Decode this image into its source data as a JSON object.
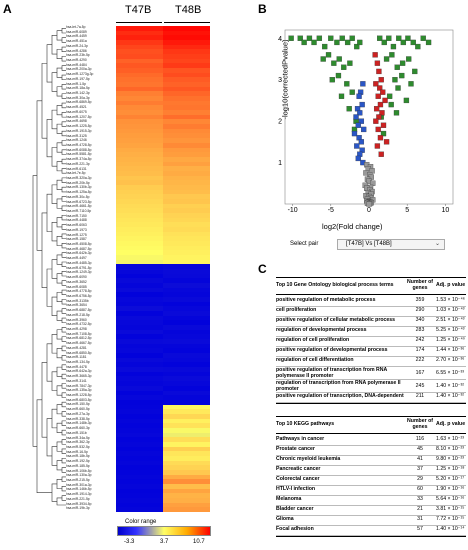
{
  "panels": {
    "a": "A",
    "b": "B",
    "c": "C"
  },
  "heatmap": {
    "columns": [
      "T47B",
      "T48B"
    ],
    "genes": [
      "hsa-let-7a-5p",
      "hsa-miR-6089",
      "hsa-miR-4459",
      "hsa-miR-451a",
      "hsa-miR-24-3p",
      "hsa-miR-4286",
      "hsa-miR-23b-5p",
      "hsa-miR-4290",
      "hsa-miR-4484",
      "hsa-miR-200a-3p",
      "hsa-miR-1273g-3p",
      "hsa-miR-197-5p",
      "hsa-miR-1-5p",
      "hsa-miR-18a-5p",
      "hsa-miR-142-3p",
      "hsa-miR-30a-3p",
      "hsa-miR-6869-5p",
      "hsa-miR-4521",
      "hsa-miR-6075",
      "hsa-miR-1207-5p",
      "hsa-miR-4698",
      "hsa-miR-1225-5p",
      "hsa-miR-1915-3p",
      "hsa-miR-3125",
      "hsa-miR-1246",
      "hsa-miR-4728-5p",
      "hsa-miR-6088-5p",
      "hsa-miR-5581-5p",
      "hsa-miR-374a-5p",
      "hsa-miR-221-3p",
      "hsa-miR-6131",
      "hsa-let-7e-5p",
      "hsa-miR-320a-3p",
      "hsa-miR-20b-5p",
      "hsa-miR-130b-3p",
      "hsa-miR-125a-5p",
      "hsa-miR-30c-5p",
      "hsa-miR-6723-5p",
      "hsa-miR-4661-5p",
      "hsa-miR-7110-5p",
      "hsa-miR-7150",
      "hsa-miR-4488",
      "hsa-miR-6063",
      "hsa-miR-1973",
      "hsa-miR-1275",
      "hsa-miR-1587",
      "hsa-miR-4508-5p",
      "hsa-miR-4687-5p",
      "hsa-miR-642b-3p",
      "hsa-miR-4497",
      "hsa-miR-4485-3p",
      "hsa-miR-6791-5p",
      "hsa-miR-1249-3p",
      "hsa-miR-6090",
      "hsa-miR-3652",
      "hsa-miR-6085",
      "hsa-miR-4778-5p",
      "hsa-miR-6756-5p",
      "hsa-miR-3135b",
      "hsa-miR-3654",
      "hsa-miR-6887-5p",
      "hsa-miR-218-5p",
      "hsa-miR-3960",
      "hsa-miR-4732-5p",
      "hsa-miR-4298",
      "hsa-miR-7108-5p",
      "hsa-miR-6812-5p",
      "hsa-miR-4667-5p",
      "hsa-miR-4281",
      "hsa-miR-6850-5p",
      "hsa-miR-1181",
      "hsa-miR-134-5p",
      "hsa-miR-4478",
      "hsa-miR-642a-3p",
      "hsa-miR-3665-3p",
      "hsa-miR-3141",
      "hsa-miR-7847-3p",
      "hsa-miR-135a-3p",
      "hsa-miR-1228-5p",
      "hsa-miR-6803-5p",
      "hsa-miR-150-5p",
      "hsa-miR-660-5p",
      "hsa-miR-27a-3p",
      "hsa-miR-338-5p",
      "hsa-miR-148b-3p",
      "hsa-miR-660-3p",
      "hsa-miR-151b",
      "hsa-miR-34a-5p",
      "hsa-miR-362-3p",
      "hsa-miR-532-5p",
      "hsa-miR-16-5p",
      "hsa-miR-18b-5p",
      "hsa-miR-192-5p",
      "hsa-miR-185-5p",
      "hsa-miR-106b-5p",
      "hsa-miR-130a-3p",
      "hsa-miR-215-5p",
      "hsa-miR-301a-3p",
      "hsa-miR-146b-5p",
      "hsa-miR-1914-3p",
      "hsa-miR-221-5p",
      "hsa-miR-3934-5p",
      "hsa-miR-19b-3p"
    ],
    "values": [
      [
        10.0,
        10.5
      ],
      [
        9.5,
        10.2
      ],
      [
        9.8,
        10.4
      ],
      [
        9.2,
        10.0
      ],
      [
        8.8,
        9.6
      ],
      [
        8.5,
        9.2
      ],
      [
        8.6,
        9.0
      ],
      [
        8.0,
        8.8
      ],
      [
        8.3,
        9.1
      ],
      [
        8.1,
        8.4
      ],
      [
        7.8,
        8.6
      ],
      [
        7.6,
        8.2
      ],
      [
        7.5,
        8.0
      ],
      [
        7.9,
        8.3
      ],
      [
        7.2,
        7.9
      ],
      [
        7.0,
        7.6
      ],
      [
        7.3,
        7.4
      ],
      [
        6.9,
        7.5
      ],
      [
        6.8,
        7.2
      ],
      [
        7.1,
        7.7
      ],
      [
        6.7,
        7.0
      ],
      [
        6.6,
        7.3
      ],
      [
        6.5,
        6.9
      ],
      [
        6.4,
        6.8
      ],
      [
        6.3,
        6.6
      ],
      [
        6.2,
        6.9
      ],
      [
        6.0,
        6.5
      ],
      [
        5.9,
        6.4
      ],
      [
        5.8,
        6.1
      ],
      [
        5.7,
        6.3
      ],
      [
        5.6,
        5.9
      ],
      [
        5.5,
        6.0
      ],
      [
        5.3,
        5.8
      ],
      [
        5.4,
        5.7
      ],
      [
        5.1,
        5.6
      ],
      [
        5.0,
        5.5
      ],
      [
        4.9,
        5.2
      ],
      [
        4.8,
        5.3
      ],
      [
        4.7,
        5.0
      ],
      [
        4.6,
        5.1
      ],
      [
        4.5,
        4.9
      ],
      [
        4.4,
        4.8
      ],
      [
        4.3,
        4.6
      ],
      [
        4.2,
        4.7
      ],
      [
        4.1,
        4.5
      ],
      [
        4.0,
        4.4
      ],
      [
        3.9,
        4.3
      ],
      [
        3.8,
        4.2
      ],
      [
        3.7,
        4.1
      ],
      [
        3.6,
        4.0
      ],
      [
        3.5,
        3.9
      ],
      [
        -3.0,
        -2.9
      ],
      [
        -2.9,
        -2.7
      ],
      [
        -3.1,
        -2.8
      ],
      [
        -2.8,
        -3.0
      ],
      [
        -3.0,
        -2.6
      ],
      [
        -2.7,
        -2.9
      ],
      [
        -3.2,
        -3.0
      ],
      [
        -2.9,
        -2.8
      ],
      [
        -3.0,
        -3.1
      ],
      [
        -2.6,
        -2.9
      ],
      [
        -3.1,
        -2.7
      ],
      [
        -2.8,
        -3.0
      ],
      [
        -2.9,
        -3.2
      ],
      [
        -3.0,
        -2.8
      ],
      [
        -2.7,
        -3.0
      ],
      [
        -3.1,
        -2.9
      ],
      [
        -2.8,
        -2.7
      ],
      [
        -3.0,
        -3.0
      ],
      [
        -2.9,
        -3.1
      ],
      [
        -3.2,
        -2.8
      ],
      [
        -2.8,
        -2.9
      ],
      [
        -3.0,
        -3.1
      ],
      [
        -2.7,
        -2.8
      ],
      [
        -3.1,
        -3.0
      ],
      [
        -2.9,
        -2.7
      ],
      [
        -3.0,
        -2.9
      ],
      [
        -2.8,
        -3.1
      ],
      [
        -3.1,
        -2.8
      ],
      [
        -2.9,
        -3.0
      ],
      [
        -3.2,
        -3.1
      ],
      [
        -3.1,
        3.9
      ],
      [
        -3.0,
        4.3
      ],
      [
        -3.2,
        4.8
      ],
      [
        -3.0,
        4.1
      ],
      [
        -3.1,
        4.5
      ],
      [
        -3.0,
        3.6
      ],
      [
        -2.9,
        3.4
      ],
      [
        -3.1,
        4.6
      ],
      [
        -3.0,
        4.0
      ],
      [
        -3.2,
        5.0
      ],
      [
        -3.0,
        4.4
      ],
      [
        -3.1,
        4.2
      ],
      [
        -3.0,
        4.7
      ],
      [
        -3.2,
        4.9
      ],
      [
        -3.1,
        5.2
      ],
      [
        -3.0,
        6.0
      ],
      [
        -3.1,
        6.8
      ],
      [
        -3.0,
        5.5
      ],
      [
        -3.2,
        6.2
      ],
      [
        -3.1,
        5.8
      ],
      [
        -3.0,
        5.9
      ],
      [
        -3.1,
        6.3
      ],
      [
        -3.0,
        6.5
      ]
    ],
    "color_range": {
      "label": "Color range",
      "min": "-3.3",
      "mid": "3.7",
      "max": "10.7"
    }
  },
  "volcano": {
    "ylabel": "-log10(correctedPvalue)",
    "xlabel": "log2(Fold change)",
    "xticks": [
      "-10",
      "-5",
      "0",
      "5",
      "10"
    ],
    "yticks": [
      "1",
      "2",
      "3",
      "4"
    ],
    "select_label": "Select pair",
    "select_value": "[T47B] Vs [T48B]"
  },
  "chart_data": {
    "type": "scatter",
    "xlabel": "log2(Fold change)",
    "ylabel": "-log10(correctedPvalue)",
    "xlim": [
      -11,
      11
    ],
    "ylim": [
      0,
      4.2
    ],
    "series": [
      {
        "color": "#2e8b2e",
        "x": [
          -10.2,
          -9.0,
          -8.5,
          -7.8,
          -7.2,
          -6.5,
          -5.8,
          -5.0,
          -4.2,
          -3.5,
          -2.8,
          -2.2,
          -1.6,
          -1.2,
          1.4,
          2.0,
          2.6,
          3.2,
          3.9,
          4.5,
          5.1,
          5.8,
          6.4,
          7.1,
          7.8,
          -6.0,
          -5.3,
          -4.6,
          -3.9,
          -3.3,
          -2.5,
          2.3,
          3.0,
          3.7,
          4.4,
          5.2,
          6.0,
          -4.8,
          -4.0,
          -2.9,
          3.4,
          4.3,
          5.5,
          -3.6,
          -2.2,
          2.7,
          3.8,
          4.9,
          -2.6,
          2.9,
          3.6,
          -1.7,
          1.6,
          -1.9,
          1.9
        ],
        "y": [
          4.0,
          4.0,
          3.9,
          4.0,
          3.9,
          4.0,
          3.8,
          4.0,
          3.9,
          4.0,
          3.9,
          4.0,
          3.8,
          3.9,
          4.0,
          3.9,
          4.0,
          3.8,
          4.0,
          3.9,
          4.0,
          3.9,
          3.8,
          4.0,
          3.9,
          3.5,
          3.6,
          3.4,
          3.5,
          3.3,
          3.4,
          3.5,
          3.6,
          3.3,
          3.4,
          3.5,
          3.2,
          3.0,
          3.1,
          2.9,
          3.0,
          3.1,
          2.9,
          2.6,
          2.7,
          2.6,
          2.8,
          2.5,
          2.3,
          2.4,
          2.2,
          2.0,
          2.1,
          1.8,
          1.7
        ]
      },
      {
        "color": "#cc2222",
        "x": [
          0.8,
          1.1,
          1.3,
          1.6,
          0.9,
          1.4,
          1.8,
          1.2,
          2.1,
          1.5,
          1.0,
          1.7,
          1.3,
          0.9,
          1.9,
          1.2,
          1.5,
          2.3,
          1.1,
          1.6
        ],
        "y": [
          3.6,
          3.4,
          3.2,
          3.0,
          2.9,
          2.8,
          2.7,
          2.6,
          2.5,
          2.4,
          2.3,
          2.2,
          2.1,
          2.0,
          1.9,
          1.8,
          1.6,
          1.5,
          1.4,
          1.2
        ]
      },
      {
        "color": "#2a56c6",
        "x": [
          -0.8,
          -1.1,
          -1.3,
          -0.9,
          -1.5,
          -1.2,
          -1.7,
          -1.0,
          -1.4,
          -0.7,
          -1.9,
          -1.3,
          -1.0,
          -1.6,
          -0.9,
          -1.2,
          -1.4,
          -0.8
        ],
        "y": [
          2.9,
          2.7,
          2.6,
          2.4,
          2.3,
          2.2,
          2.1,
          2.0,
          1.9,
          1.8,
          1.7,
          1.6,
          1.5,
          1.4,
          1.3,
          1.2,
          1.1,
          1.0
        ]
      },
      {
        "color": "#999999",
        "x": [
          -0.3,
          0.2,
          -0.1,
          0.4,
          -0.4,
          0.1,
          0.3,
          -0.2,
          0.0,
          0.5,
          -0.5,
          0.2,
          -0.3,
          0.1,
          0.4,
          -0.1,
          0.3,
          -0.4,
          0.0,
          0.2,
          -0.2,
          0.5,
          -0.3,
          0.1,
          0.0,
          -0.1,
          0.3,
          -0.2,
          0.1,
          0.0
        ],
        "y": [
          0.95,
          0.9,
          0.85,
          0.8,
          0.75,
          0.7,
          0.65,
          0.6,
          0.55,
          0.5,
          0.45,
          0.4,
          0.38,
          0.34,
          0.3,
          0.27,
          0.24,
          0.2,
          0.18,
          0.15,
          0.12,
          0.1,
          0.08,
          0.06,
          0.05,
          0.04,
          0.03,
          0.02,
          0.01,
          0.0
        ]
      }
    ]
  },
  "go_table": {
    "headers": [
      "Top 10 Gene Ontology biological process terms",
      "Number of genes",
      "Adj. p value"
    ],
    "rows": [
      [
        "positive regulation of metabolic process",
        "359",
        "1.53 × 10⁻⁴⁶"
      ],
      [
        "cell proliferation",
        "290",
        "1.03 × 10⁻⁴³"
      ],
      [
        "positive regulation of cellular metabolic process",
        "340",
        "2.51 × 10⁻⁴³"
      ],
      [
        "regulation of developmental process",
        "283",
        "5.25 × 10⁻⁴³"
      ],
      [
        "regulation of cell proliferation",
        "242",
        "1.25 × 10⁻⁴⁰"
      ],
      [
        "positive regulation of developmental process",
        "174",
        "1.44 × 10⁻³⁶"
      ],
      [
        "regulation of cell differentiation",
        "222",
        "2.70 × 10⁻³⁶"
      ],
      [
        "positive regulation of transcription from RNA polymerase II promoter",
        "167",
        "6.55 × 10⁻³³"
      ],
      [
        "regulation of transcription from RNA polymerase II promoter",
        "245",
        "1.40 × 10⁻³²"
      ],
      [
        "positive regulation of transcription, DNA-dependent",
        "211",
        "1.40 × 10⁻³²"
      ]
    ]
  },
  "kegg_table": {
    "headers": [
      "Top 10 KEGG pathways",
      "Number of genes",
      "Adj. p value"
    ],
    "rows": [
      [
        "Pathways in cancer",
        "116",
        "1.63 × 10⁻²³"
      ],
      [
        "Prostate cancer",
        "45",
        "8.10 × 10⁻²³"
      ],
      [
        "Chronic myeloid leukemia",
        "41",
        "9.80 × 10⁻²³"
      ],
      [
        "Pancreatic cancer",
        "37",
        "1.25 × 10⁻¹⁸"
      ],
      [
        "Colorectal cancer",
        "29",
        "5.20 × 10⁻¹⁷"
      ],
      [
        "HTLV-I infection",
        "60",
        "1.90 × 10⁻¹⁶"
      ],
      [
        "Melanoma",
        "33",
        "5.64 × 10⁻¹⁶"
      ],
      [
        "Bladder cancer",
        "21",
        "3.81 × 10⁻¹⁵"
      ],
      [
        "Glioma",
        "31",
        "7.72 × 10⁻¹⁵"
      ],
      [
        "Focal adhesion",
        "57",
        "1.40 × 10⁻¹⁴"
      ]
    ]
  }
}
